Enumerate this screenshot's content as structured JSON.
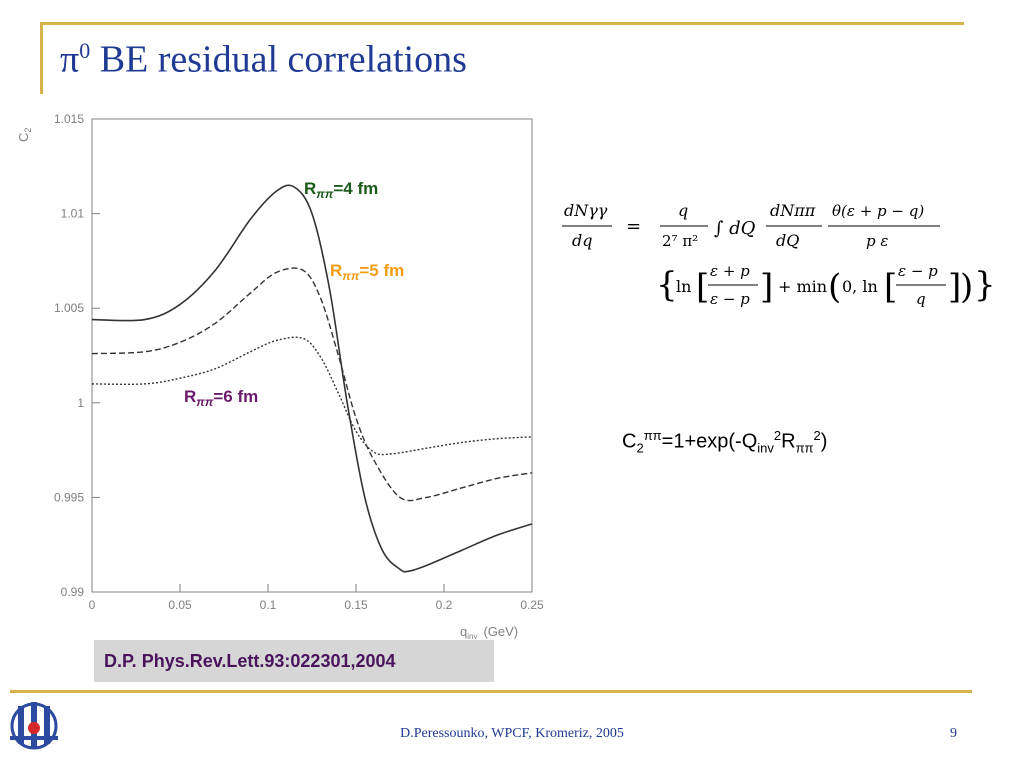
{
  "slide": {
    "title_greek": "π",
    "title_sup": "0",
    "title_rest": " BE residual correlations",
    "citation": "D.P. Phys.Rev.Lett.93:022301,2004",
    "footer": "D.Peressounko, WPCF, Kromeriz, 2005",
    "page": "9"
  },
  "formula": {
    "simple": {
      "c": "C",
      "c_sub": "2",
      "c_sup": "ππ",
      "mid": "=1+exp(-Q",
      "q_sub": "inv",
      "q_sup": "2",
      "r": "R",
      "r_sub": "ππ",
      "r_sup": "2",
      "end": ")"
    },
    "lhs_num": "dNγγ",
    "lhs_den": "dq",
    "eq": "=",
    "frac1_num": "q",
    "frac1_den": "2⁷ π²",
    "integral": "∫ dQ",
    "frac2_num": "dNππ",
    "frac2_den": "dQ",
    "frac3_num": "θ(ε + p − q)",
    "frac3_den": "p ε",
    "ln": "ln",
    "lnfrac_num": "ε + p",
    "lnfrac_den": "ε − p",
    "plus_min": "+ min",
    "zero_ln": "0, ln",
    "minfrac_num": "ε − p",
    "minfrac_den": "q"
  },
  "colors": {
    "title": "#1f3a93",
    "rule": "#d8b24a",
    "label_4fm": "#1a5a1a",
    "label_5fm": "#f39c12",
    "label_6fm": "#6a1a6a"
  },
  "chart_data": {
    "type": "line",
    "ylabel": "C",
    "ylabel_sub": "2",
    "xlabel": "q",
    "xlabel_sub": "inv",
    "xunit": "(GeV)",
    "xlim": [
      0,
      0.25
    ],
    "ylim": [
      0.99,
      1.015
    ],
    "xticks": [
      "0",
      "0.05",
      "0.1",
      "0.15",
      "0.2",
      "0.25"
    ],
    "xtick_values": [
      0,
      0.05,
      0.1,
      0.15,
      0.2,
      0.25
    ],
    "yticks": [
      "0.99",
      "0.995",
      "1",
      "1.005",
      "1.01",
      "1.015"
    ],
    "ytick_values": [
      0.99,
      0.995,
      1,
      1.005,
      1.01,
      1.015
    ],
    "series": [
      {
        "label_r": "R",
        "label_sub": "ππ",
        "label_rest": "=4 fm",
        "style": "solid",
        "x": [
          0,
          0.03,
          0.05,
          0.07,
          0.09,
          0.105,
          0.115,
          0.125,
          0.135,
          0.145,
          0.155,
          0.165,
          0.175,
          0.18,
          0.19,
          0.21,
          0.23,
          0.25
        ],
        "y": [
          1.0044,
          1.0044,
          1.0052,
          1.007,
          1.0097,
          1.0112,
          1.0114,
          1.01,
          1.006,
          1.0,
          0.995,
          0.9922,
          0.9912,
          0.9911,
          0.9914,
          0.9922,
          0.993,
          0.9936
        ]
      },
      {
        "label_r": "R",
        "label_sub": "ππ",
        "label_rest": "=5 fm",
        "style": "dashed",
        "x": [
          0,
          0.03,
          0.05,
          0.07,
          0.09,
          0.105,
          0.12,
          0.13,
          0.14,
          0.15,
          0.16,
          0.175,
          0.19,
          0.21,
          0.23,
          0.25
        ],
        "y": [
          1.0026,
          1.0027,
          1.0032,
          1.0042,
          1.0058,
          1.0069,
          1.007,
          1.0055,
          1.0025,
          0.9992,
          0.997,
          0.995,
          0.995,
          0.9955,
          0.996,
          0.9963
        ]
      },
      {
        "label_r": "R",
        "label_sub": "ππ",
        "label_rest": "=6 fm",
        "style": "dotted",
        "x": [
          0,
          0.03,
          0.05,
          0.07,
          0.09,
          0.105,
          0.12,
          0.13,
          0.14,
          0.15,
          0.16,
          0.17,
          0.19,
          0.21,
          0.23,
          0.25
        ],
        "y": [
          1.001,
          1.001,
          1.0013,
          1.0018,
          1.0027,
          1.0033,
          1.0034,
          1.0024,
          1.0005,
          0.9985,
          0.9974,
          0.9973,
          0.9976,
          0.9979,
          0.9981,
          0.9982
        ]
      }
    ]
  }
}
